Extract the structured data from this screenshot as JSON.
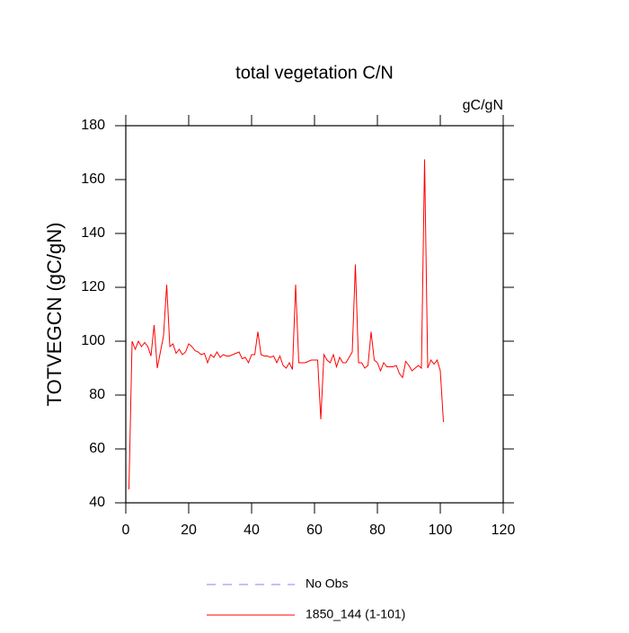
{
  "chart_data": {
    "type": "line",
    "title": "total vegetation C/N",
    "units_label": "gC/gN",
    "y_label": "TOTVEGCN  (gC/gN)",
    "x": [
      1,
      2,
      3,
      4,
      5,
      6,
      7,
      8,
      9,
      10,
      11,
      12,
      13,
      14,
      15,
      16,
      17,
      18,
      19,
      20,
      21,
      22,
      23,
      24,
      25,
      26,
      27,
      28,
      29,
      30,
      31,
      32,
      33,
      34,
      35,
      36,
      37,
      38,
      39,
      40,
      41,
      42,
      43,
      44,
      45,
      46,
      47,
      48,
      49,
      50,
      51,
      52,
      53,
      54,
      55,
      56,
      57,
      58,
      59,
      60,
      61,
      62,
      63,
      64,
      65,
      66,
      67,
      68,
      69,
      70,
      71,
      72,
      73,
      74,
      75,
      76,
      77,
      78,
      79,
      80,
      81,
      82,
      83,
      84,
      85,
      86,
      87,
      88,
      89,
      90,
      91,
      92,
      93,
      94,
      95,
      96,
      97,
      98,
      99,
      100,
      101
    ],
    "series": [
      {
        "name": "No Obs",
        "color": "#8080ff",
        "dashed": true,
        "values": [
          null,
          null,
          null,
          null,
          null,
          null,
          null,
          null,
          null,
          null,
          null,
          null,
          null,
          null,
          null,
          null,
          null,
          null,
          null,
          null,
          null,
          null,
          null,
          null,
          null,
          null,
          null,
          null,
          null,
          null,
          null,
          null,
          null,
          null,
          null,
          null,
          null,
          null,
          null,
          null,
          null,
          null,
          null,
          null,
          null,
          null,
          null,
          null,
          null,
          null,
          null,
          null,
          null,
          null,
          null,
          null,
          null,
          null,
          null,
          null,
          null,
          null,
          null,
          null,
          null,
          null,
          null,
          null,
          null,
          null,
          null,
          null,
          null,
          null,
          null,
          null,
          null,
          null,
          null,
          null,
          null,
          null,
          null,
          null,
          null,
          null,
          null,
          null,
          null,
          null,
          null,
          null,
          null,
          null,
          null,
          null,
          null,
          null,
          null,
          null,
          null
        ]
      },
      {
        "name": "1850_144 (1-101)",
        "color": "#ff0000",
        "dashed": false,
        "values": [
          45,
          100,
          97,
          100,
          98,
          99.5,
          98,
          94.5,
          106,
          90,
          96,
          102,
          121,
          98,
          99,
          95.5,
          97,
          95,
          96,
          99,
          98,
          96.5,
          96,
          95,
          95.5,
          92,
          95,
          94,
          96,
          94,
          95,
          94.5,
          94.5,
          95,
          95.5,
          96,
          93.5,
          94,
          92,
          95,
          95,
          103.5,
          95,
          94.5,
          94.5,
          94,
          94.5,
          92,
          94.5,
          91,
          90,
          92,
          89.5,
          121,
          92,
          92,
          92,
          92.5,
          93,
          93,
          93,
          71,
          95,
          93,
          92,
          95,
          90.5,
          94,
          92,
          92,
          94,
          96,
          128.5,
          92,
          92,
          90,
          91,
          103.5,
          93,
          92,
          89,
          92,
          90.5,
          90.5,
          90.5,
          91,
          88,
          86.5,
          92.5,
          91,
          89,
          90,
          91,
          90,
          167.5,
          90,
          93,
          91.5,
          93,
          89,
          70
        ]
      }
    ],
    "xlim": [
      0,
      120
    ],
    "xticks": [
      0,
      20,
      40,
      60,
      80,
      100,
      120
    ],
    "ylim": [
      40,
      180
    ],
    "yticks": [
      40,
      60,
      80,
      100,
      120,
      140,
      160,
      180
    ]
  }
}
